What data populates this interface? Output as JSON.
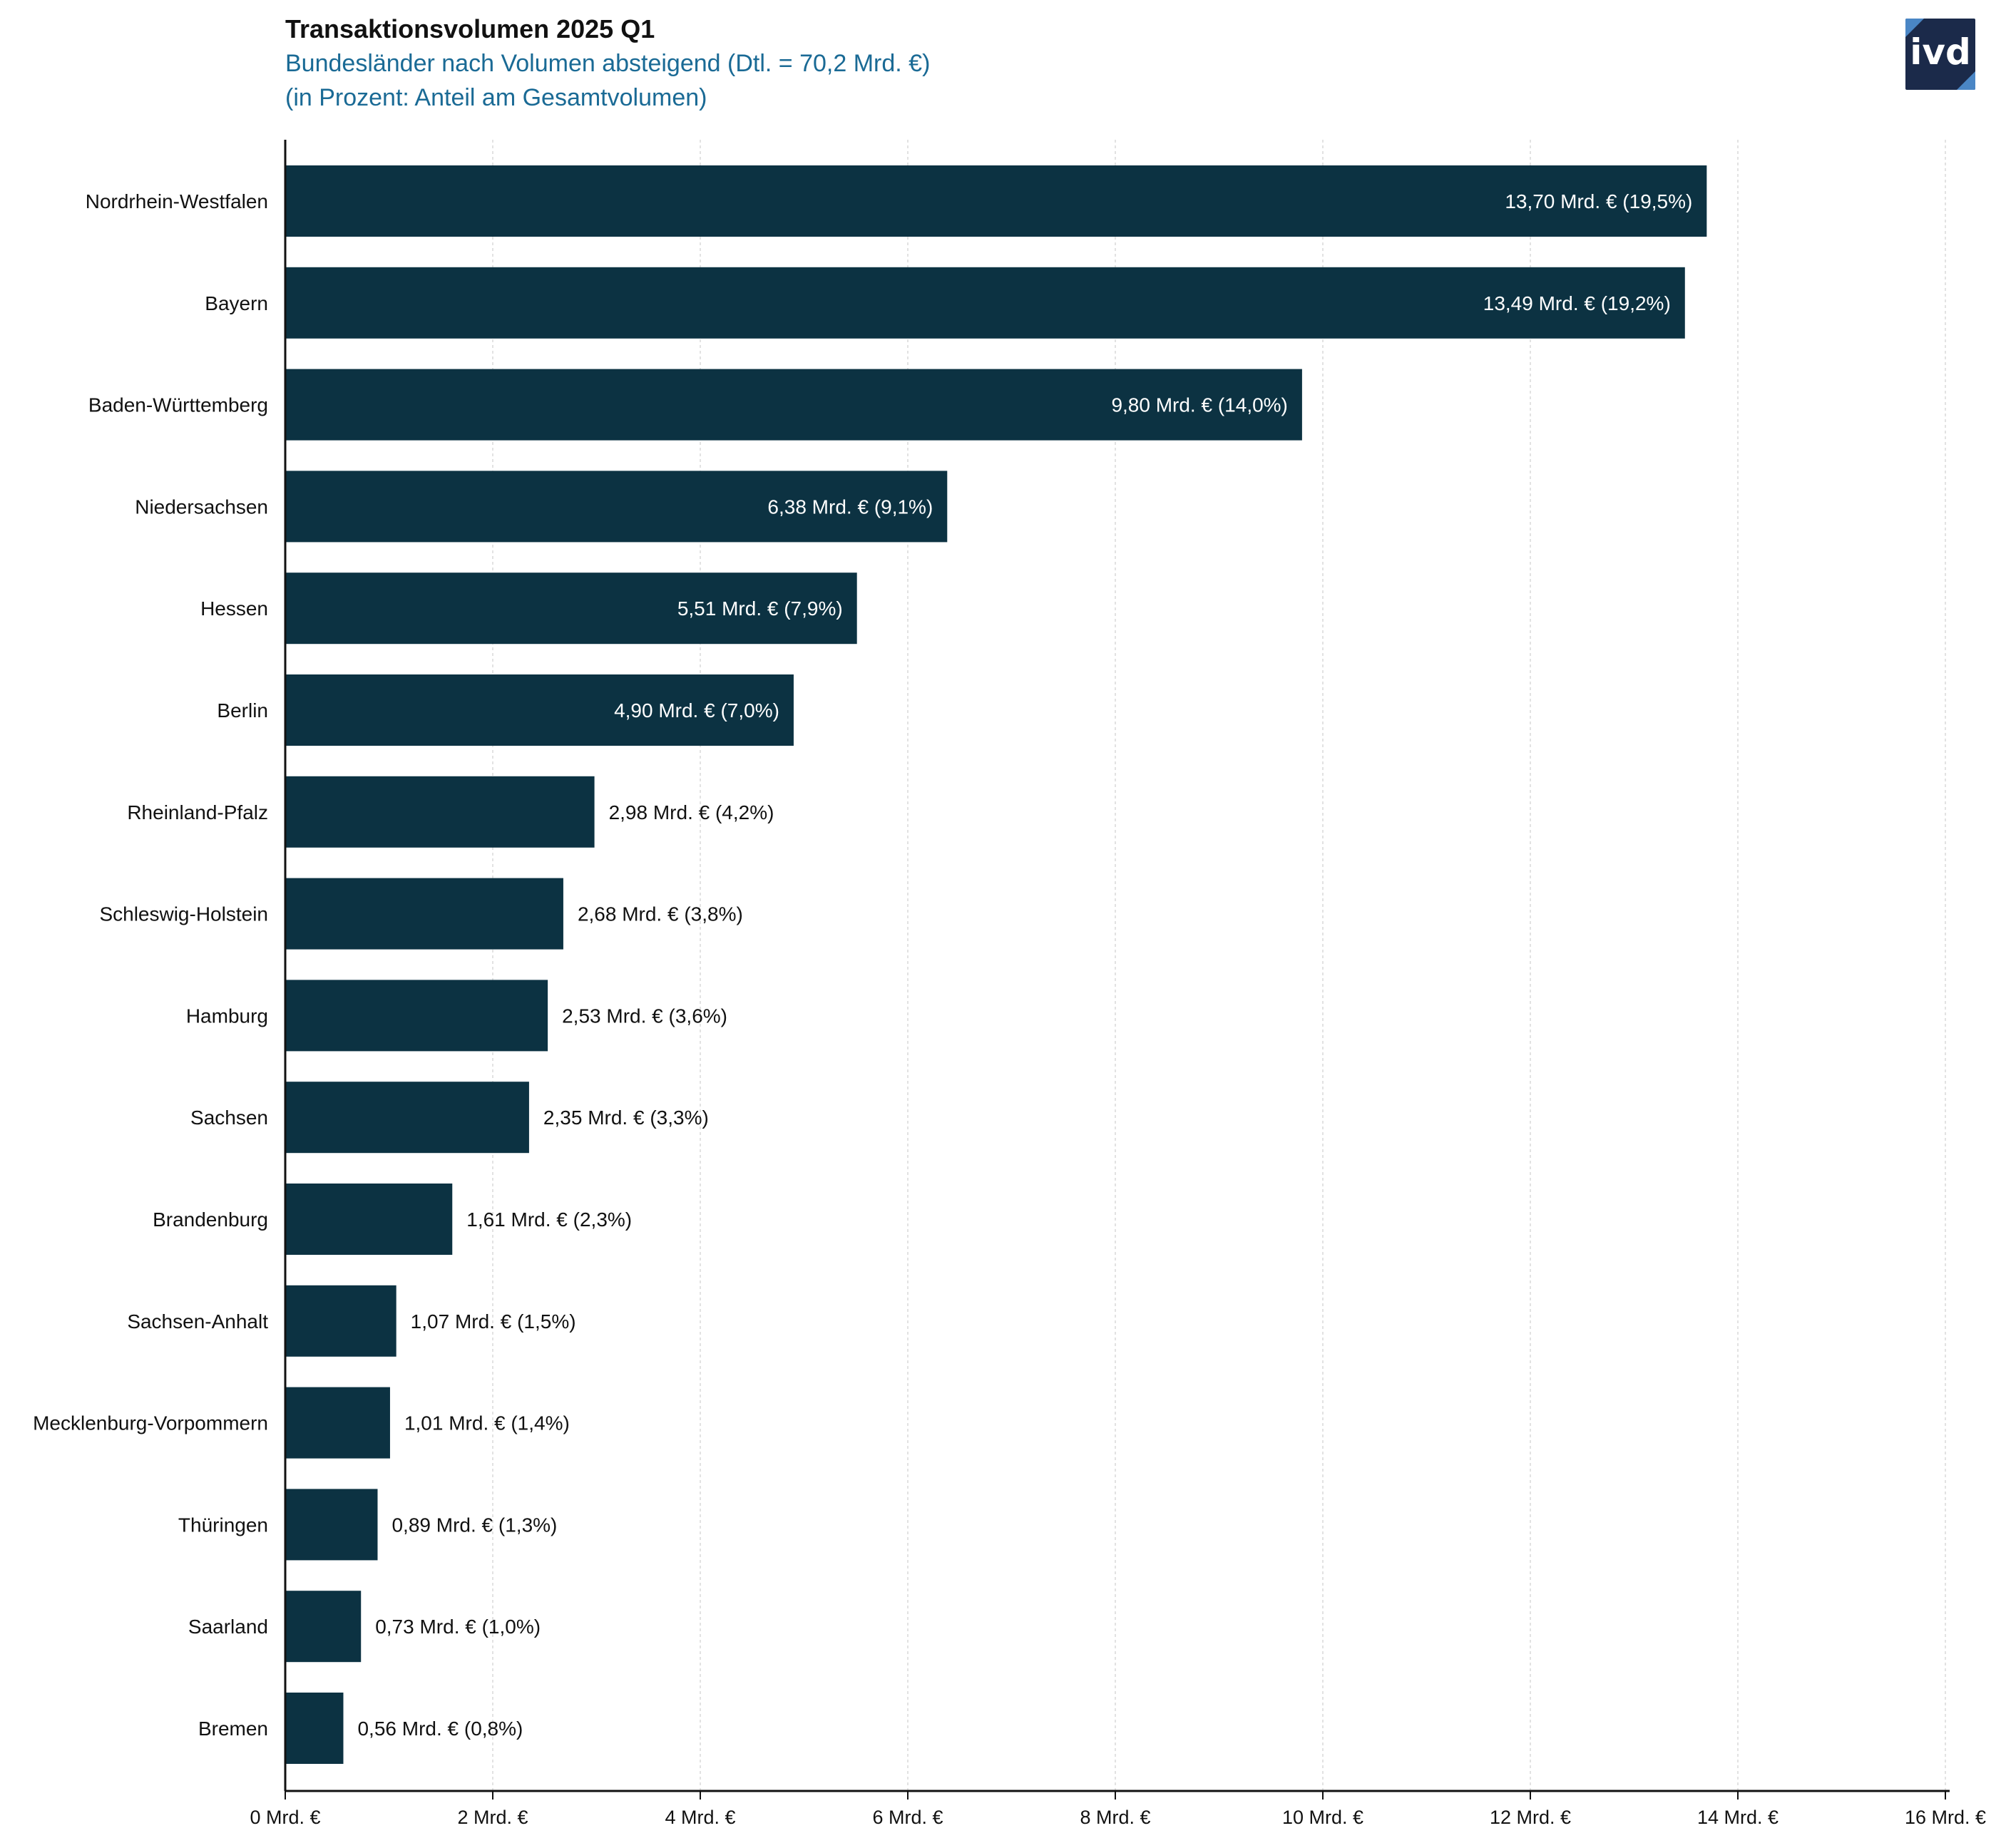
{
  "header": {
    "title": "Transaktionsvolumen 2025 Q1",
    "subtitle_line1": "Bundesländer nach Volumen absteigend (Dtl. = 70,2 Mrd. €)",
    "subtitle_line2": "(in Prozent: Anteil am Gesamtvolumen)",
    "logo_text": "ivd"
  },
  "colors": {
    "bar": "#0c3242",
    "subtitle": "#1a6a95",
    "grid": "#d9d9d9",
    "logo_bg": "#1b2a4a",
    "logo_accent": "#4a86c5"
  },
  "chart_data": {
    "type": "bar",
    "orientation": "horizontal",
    "title": "Transaktionsvolumen 2025 Q1",
    "subtitle": "Bundesländer nach Volumen absteigend (Dtl. = 70,2 Mrd. €) (in Prozent: Anteil am Gesamtvolumen)",
    "xlabel": "",
    "ylabel": "",
    "xlim": [
      0,
      16
    ],
    "grid": true,
    "legend": "none",
    "categories": [
      "Nordrhein-Westfalen",
      "Bayern",
      "Baden-Württemberg",
      "Niedersachsen",
      "Hessen",
      "Berlin",
      "Rheinland-Pfalz",
      "Schleswig-Holstein",
      "Hamburg",
      "Sachsen",
      "Brandenburg",
      "Sachsen-Anhalt",
      "Mecklenburg-Vorpommern",
      "Thüringen",
      "Saarland",
      "Bremen"
    ],
    "values": [
      13.7,
      13.49,
      9.8,
      6.38,
      5.51,
      4.9,
      2.98,
      2.68,
      2.53,
      2.35,
      1.61,
      1.07,
      1.01,
      0.89,
      0.73,
      0.56
    ],
    "data_labels": [
      "13,70 Mrd. € (19,5%)",
      "13,49 Mrd. € (19,2%)",
      "9,80 Mrd. € (14,0%)",
      "6,38 Mrd. € (9,1%)",
      "5,51 Mrd. € (7,9%)",
      "4,90 Mrd. € (7,0%)",
      "2,98 Mrd. € (4,2%)",
      "2,68 Mrd. € (3,8%)",
      "2,53 Mrd. € (3,6%)",
      "2,35 Mrd. € (3,3%)",
      "1,61 Mrd. € (2,3%)",
      "1,07 Mrd. € (1,5%)",
      "1,01 Mrd. € (1,4%)",
      "0,89 Mrd. € (1,3%)",
      "0,73 Mrd. € (1,0%)",
      "0,56 Mrd. € (0,8%)"
    ],
    "x_ticks": [
      0,
      2,
      4,
      6,
      8,
      10,
      12,
      14,
      16
    ],
    "x_tick_labels": [
      "0 Mrd. €",
      "2 Mrd. €",
      "4 Mrd. €",
      "6 Mrd. €",
      "8 Mrd. €",
      "10 Mrd. €",
      "12 Mrd. €",
      "14 Mrd. €",
      "16 Mrd. €"
    ]
  }
}
